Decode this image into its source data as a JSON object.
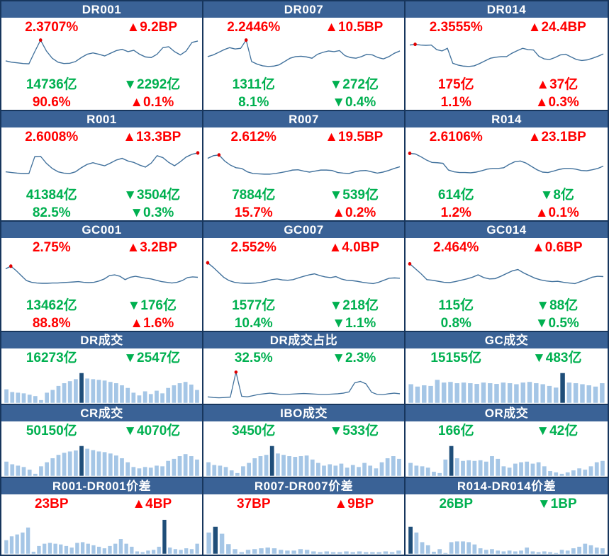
{
  "colors": {
    "red": "#FF0000",
    "green": "#00B050",
    "header_bg": "#3A6296",
    "header_text": "#FFFFFF",
    "border": "#17365D",
    "line": "#41719C",
    "marker": "#E00000",
    "bar_light": "#A5C6E6",
    "bar_dark": "#1F4E79"
  },
  "panels": [
    {
      "title": "DR001",
      "layout": "rate",
      "stats": [
        [
          {
            "text": "2.3707%",
            "color": "red"
          },
          {
            "text": "▲9.2BP",
            "color": "red"
          }
        ],
        [
          {
            "text": "14736亿",
            "color": "green"
          },
          {
            "text": "▼2292亿",
            "color": "green"
          }
        ],
        [
          {
            "text": "90.6%",
            "color": "red"
          },
          {
            "text": "▲0.1%",
            "color": "red"
          }
        ]
      ]
    },
    {
      "title": "DR007",
      "layout": "rate",
      "stats": [
        [
          {
            "text": "2.2446%",
            "color": "red"
          },
          {
            "text": "▲10.5BP",
            "color": "red"
          }
        ],
        [
          {
            "text": "1311亿",
            "color": "green"
          },
          {
            "text": "▼272亿",
            "color": "green"
          }
        ],
        [
          {
            "text": "8.1%",
            "color": "green"
          },
          {
            "text": "▼0.4%",
            "color": "green"
          }
        ]
      ]
    },
    {
      "title": "DR014",
      "layout": "rate",
      "stats": [
        [
          {
            "text": "2.3555%",
            "color": "red"
          },
          {
            "text": "▲24.4BP",
            "color": "red"
          }
        ],
        [
          {
            "text": "175亿",
            "color": "red"
          },
          {
            "text": "▲37亿",
            "color": "red"
          }
        ],
        [
          {
            "text": "1.1%",
            "color": "red"
          },
          {
            "text": "▲0.3%",
            "color": "red"
          }
        ]
      ]
    },
    {
      "title": "R001",
      "layout": "rate",
      "stats": [
        [
          {
            "text": "2.6008%",
            "color": "red"
          },
          {
            "text": "▲13.3BP",
            "color": "red"
          }
        ],
        [
          {
            "text": "41384亿",
            "color": "green"
          },
          {
            "text": "▼3504亿",
            "color": "green"
          }
        ],
        [
          {
            "text": "82.5%",
            "color": "green"
          },
          {
            "text": "▼0.3%",
            "color": "green"
          }
        ]
      ]
    },
    {
      "title": "R007",
      "layout": "rate",
      "stats": [
        [
          {
            "text": "2.612%",
            "color": "red"
          },
          {
            "text": "▲19.5BP",
            "color": "red"
          }
        ],
        [
          {
            "text": "7884亿",
            "color": "green"
          },
          {
            "text": "▼539亿",
            "color": "green"
          }
        ],
        [
          {
            "text": "15.7%",
            "color": "red"
          },
          {
            "text": "▲0.2%",
            "color": "red"
          }
        ]
      ]
    },
    {
      "title": "R014",
      "layout": "rate",
      "stats": [
        [
          {
            "text": "2.6106%",
            "color": "red"
          },
          {
            "text": "▲23.1BP",
            "color": "red"
          }
        ],
        [
          {
            "text": "614亿",
            "color": "green"
          },
          {
            "text": "▼8亿",
            "color": "green"
          }
        ],
        [
          {
            "text": "1.2%",
            "color": "red"
          },
          {
            "text": "▲0.1%",
            "color": "red"
          }
        ]
      ]
    },
    {
      "title": "GC001",
      "layout": "rate",
      "stats": [
        [
          {
            "text": "2.75%",
            "color": "red"
          },
          {
            "text": "▲3.2BP",
            "color": "red"
          }
        ],
        [
          {
            "text": "13462亿",
            "color": "green"
          },
          {
            "text": "▼176亿",
            "color": "green"
          }
        ],
        [
          {
            "text": "88.8%",
            "color": "red"
          },
          {
            "text": "▲1.6%",
            "color": "red"
          }
        ]
      ]
    },
    {
      "title": "GC007",
      "layout": "rate",
      "stats": [
        [
          {
            "text": "2.552%",
            "color": "red"
          },
          {
            "text": "▲4.0BP",
            "color": "red"
          }
        ],
        [
          {
            "text": "1577亿",
            "color": "green"
          },
          {
            "text": "▼218亿",
            "color": "green"
          }
        ],
        [
          {
            "text": "10.4%",
            "color": "green"
          },
          {
            "text": "▼1.1%",
            "color": "green"
          }
        ]
      ]
    },
    {
      "title": "GC014",
      "layout": "rate",
      "stats": [
        [
          {
            "text": "2.464%",
            "color": "red"
          },
          {
            "text": "▲0.6BP",
            "color": "red"
          }
        ],
        [
          {
            "text": "115亿",
            "color": "green"
          },
          {
            "text": "▼88亿",
            "color": "green"
          }
        ],
        [
          {
            "text": "0.8%",
            "color": "green"
          },
          {
            "text": "▼0.5%",
            "color": "green"
          }
        ]
      ]
    },
    {
      "title": "DR成交",
      "layout": "stat",
      "stats": [
        [
          {
            "text": "16273亿",
            "color": "green"
          },
          {
            "text": "▼2547亿",
            "color": "green"
          }
        ]
      ]
    },
    {
      "title": "DR成交占比",
      "layout": "stat",
      "stats": [
        [
          {
            "text": "32.5%",
            "color": "green"
          },
          {
            "text": "▼2.3%",
            "color": "green"
          }
        ]
      ]
    },
    {
      "title": "GC成交",
      "layout": "stat",
      "stats": [
        [
          {
            "text": "15155亿",
            "color": "green"
          },
          {
            "text": "▼483亿",
            "color": "green"
          }
        ]
      ]
    },
    {
      "title": "CR成交",
      "layout": "stat",
      "stats": [
        [
          {
            "text": "50150亿",
            "color": "green"
          },
          {
            "text": "▼4070亿",
            "color": "green"
          }
        ]
      ]
    },
    {
      "title": "IBO成交",
      "layout": "stat",
      "stats": [
        [
          {
            "text": "3450亿",
            "color": "green"
          },
          {
            "text": "▼533亿",
            "color": "green"
          }
        ]
      ]
    },
    {
      "title": "OR成交",
      "layout": "stat",
      "stats": [
        [
          {
            "text": "166亿",
            "color": "green"
          },
          {
            "text": "▼42亿",
            "color": "green"
          }
        ]
      ]
    },
    {
      "title": "R001-DR001价差",
      "layout": "stat",
      "stats": [
        [
          {
            "text": "23BP",
            "color": "red"
          },
          {
            "text": "▲4BP",
            "color": "red"
          }
        ]
      ]
    },
    {
      "title": "R007-DR007价差",
      "layout": "stat",
      "stats": [
        [
          {
            "text": "37BP",
            "color": "red"
          },
          {
            "text": "▲9BP",
            "color": "red"
          }
        ]
      ]
    },
    {
      "title": "R014-DR014价差",
      "layout": "stat",
      "stats": [
        [
          {
            "text": "26BP",
            "color": "green"
          },
          {
            "text": "▼1BP",
            "color": "green"
          }
        ]
      ]
    }
  ],
  "chart_data": [
    {
      "name": "DR001",
      "type": "line",
      "scale": "percent-of-chart-height (axis unlabeled)",
      "values": [
        32,
        28,
        26,
        24,
        23,
        60,
        95,
        62,
        40,
        28,
        24,
        25,
        30,
        42,
        52,
        56,
        52,
        47,
        55,
        63,
        67,
        60,
        64,
        52,
        44,
        42,
        52,
        72,
        75,
        60,
        50,
        62,
        88,
        92
      ],
      "marker_index": 6
    },
    {
      "name": "DR007",
      "type": "line",
      "scale": "percent-of-chart-height (axis unlabeled)",
      "values": [
        45,
        50,
        58,
        66,
        72,
        68,
        70,
        95,
        30,
        22,
        17,
        15,
        16,
        20,
        30,
        40,
        45,
        46,
        44,
        40,
        52,
        58,
        62,
        60,
        63,
        48,
        42,
        40,
        45,
        52,
        50,
        42,
        38,
        45,
        55,
        62
      ],
      "marker_index": 7
    },
    {
      "name": "DR014",
      "type": "line",
      "scale": "percent-of-chart-height (axis unlabeled)",
      "values": [
        80,
        82,
        80,
        79,
        80,
        66,
        62,
        70,
        25,
        19,
        16,
        15,
        17,
        24,
        32,
        40,
        43,
        45,
        45,
        55,
        63,
        70,
        66,
        65,
        46,
        38,
        36,
        42,
        50,
        52,
        44,
        36,
        33,
        35,
        40,
        46,
        53
      ],
      "marker_index": 1
    },
    {
      "name": "R001",
      "type": "line",
      "scale": "percent-of-chart-height (axis unlabeled)",
      "values": [
        30,
        28,
        26,
        25,
        25,
        75,
        76,
        55,
        40,
        30,
        26,
        25,
        30,
        42,
        52,
        57,
        52,
        48,
        56,
        65,
        70,
        62,
        58,
        50,
        44,
        56,
        78,
        72,
        58,
        48,
        60,
        74,
        82,
        86
      ],
      "marker_index": 33
    },
    {
      "name": "R007",
      "type": "line",
      "scale": "percent-of-chart-height (axis unlabeled)",
      "values": [
        70,
        78,
        80,
        62,
        50,
        42,
        40,
        30,
        25,
        24,
        23,
        23,
        25,
        28,
        31,
        35,
        36,
        32,
        29,
        32,
        35,
        35,
        34,
        28,
        26,
        25,
        30,
        33,
        34,
        30,
        26,
        29,
        34,
        40,
        45
      ],
      "marker_index": 2
    },
    {
      "name": "R014",
      "type": "line",
      "scale": "percent-of-chart-height (axis unlabeled)",
      "values": [
        85,
        83,
        75,
        65,
        58,
        57,
        55,
        35,
        30,
        28,
        28,
        27,
        29,
        33,
        38,
        40,
        40,
        42,
        52,
        60,
        62,
        56,
        46,
        36,
        29,
        28,
        32,
        37,
        40,
        40,
        38,
        34,
        33,
        36,
        40,
        47
      ],
      "marker_index": 0
    },
    {
      "name": "GC001",
      "type": "line",
      "scale": "percent-of-chart-height (axis unlabeled)",
      "values": [
        70,
        78,
        65,
        50,
        35,
        30,
        28,
        27,
        27,
        28,
        28,
        29,
        30,
        31,
        32,
        30,
        29,
        30,
        34,
        40,
        50,
        52,
        48,
        38,
        45,
        48,
        45,
        42,
        40,
        36,
        32,
        30,
        28,
        30,
        35,
        44,
        46,
        45
      ],
      "marker_index": 1
    },
    {
      "name": "GC007",
      "type": "line",
      "scale": "percent-of-chart-height (axis unlabeled)",
      "values": [
        88,
        75,
        60,
        45,
        35,
        30,
        28,
        27,
        27,
        28,
        30,
        33,
        38,
        40,
        37,
        36,
        38,
        43,
        48,
        52,
        55,
        50,
        46,
        44,
        47,
        40,
        36,
        35,
        33,
        30,
        28,
        26,
        30,
        36,
        42,
        43,
        42
      ],
      "marker_index": 0
    },
    {
      "name": "GC014",
      "type": "line",
      "scale": "percent-of-chart-height (axis unlabeled)",
      "values": [
        85,
        70,
        55,
        38,
        36,
        33,
        30,
        29,
        32,
        36,
        40,
        45,
        52,
        44,
        40,
        41,
        48,
        56,
        64,
        68,
        58,
        50,
        42,
        37,
        34,
        32,
        33,
        30,
        28,
        26,
        32,
        38,
        45,
        48,
        47
      ],
      "marker_index": 0
    },
    {
      "name": "DR成交",
      "type": "bar",
      "scale": "percent-of-chart-height (axis unlabeled)",
      "values": [
        40,
        32,
        30,
        28,
        24,
        20,
        8,
        30,
        38,
        50,
        58,
        64,
        70,
        88,
        72,
        70,
        68,
        66,
        62,
        58,
        52,
        44,
        30,
        22,
        34,
        26,
        36,
        28,
        44,
        52,
        58,
        62,
        54,
        38
      ],
      "highlight_index": 13
    },
    {
      "name": "DR成交占比",
      "type": "line",
      "scale": "percent-of-chart-height (axis unlabeled)",
      "values": [
        10,
        8,
        7,
        8,
        9,
        90,
        12,
        10,
        14,
        18,
        20,
        22,
        20,
        18,
        18,
        19,
        20,
        21,
        20,
        19,
        18,
        18,
        19,
        20,
        22,
        26,
        55,
        60,
        52,
        25,
        18,
        17,
        20,
        22,
        20
      ],
      "marker_index": 5
    },
    {
      "name": "GC成交",
      "type": "bar",
      "scale": "percent-of-chart-height (axis unlabeled)",
      "values": [
        55,
        48,
        52,
        50,
        68,
        60,
        62,
        58,
        60,
        58,
        56,
        60,
        58,
        56,
        60,
        58,
        55,
        60,
        62,
        58,
        55,
        50,
        45,
        88,
        60,
        58,
        55,
        52,
        48,
        58
      ],
      "highlight_index": 23
    },
    {
      "name": "CR成交",
      "type": "bar",
      "scale": "percent-of-chart-height (axis unlabeled)",
      "values": [
        42,
        34,
        30,
        26,
        18,
        6,
        28,
        40,
        52,
        62,
        68,
        72,
        75,
        88,
        80,
        76,
        72,
        70,
        66,
        60,
        52,
        40,
        26,
        22,
        26,
        24,
        30,
        28,
        44,
        50,
        58,
        64,
        58,
        48
      ],
      "highlight_index": 13
    },
    {
      "name": "IBO成交",
      "type": "bar",
      "scale": "percent-of-chart-height (axis unlabeled)",
      "values": [
        40,
        32,
        30,
        26,
        16,
        8,
        28,
        38,
        52,
        58,
        62,
        88,
        66,
        62,
        58,
        56,
        58,
        60,
        48,
        38,
        30,
        34,
        30,
        36,
        24,
        32,
        26,
        38,
        30,
        22,
        40,
        52,
        58,
        50
      ],
      "highlight_index": 11
    },
    {
      "name": "OR成交",
      "type": "bar",
      "scale": "percent-of-chart-height (axis unlabeled)",
      "values": [
        38,
        30,
        28,
        24,
        12,
        8,
        48,
        88,
        52,
        44,
        46,
        44,
        46,
        42,
        58,
        50,
        28,
        24,
        36,
        40,
        42,
        36,
        40,
        28,
        14,
        10,
        6,
        10,
        16,
        22,
        18,
        28,
        40,
        44
      ],
      "highlight_index": 7
    },
    {
      "name": "R001-DR001价差",
      "type": "bar",
      "scale": "percent-of-chart-height (axis unlabeled)",
      "values": [
        35,
        45,
        50,
        55,
        68,
        5,
        20,
        26,
        28,
        26,
        24,
        20,
        16,
        28,
        30,
        26,
        22,
        18,
        14,
        20,
        26,
        38,
        26,
        18,
        6,
        4,
        8,
        10,
        18,
        88,
        16,
        12,
        10,
        14,
        12,
        26
      ],
      "highlight_index": 29
    },
    {
      "name": "R007-DR007价差",
      "type": "bar",
      "scale": "percent-of-chart-height (axis unlabeled)",
      "values": [
        55,
        70,
        52,
        25,
        12,
        4,
        10,
        12,
        14,
        16,
        14,
        10,
        8,
        8,
        12,
        10,
        6,
        4,
        6,
        4,
        4,
        6,
        4,
        6,
        4,
        4,
        4,
        6,
        4,
        8
      ],
      "highlight_index": 1
    },
    {
      "name": "R014-DR014价差",
      "type": "bar",
      "scale": "percent-of-chart-height (axis unlabeled)",
      "values": [
        70,
        55,
        30,
        22,
        5,
        12,
        2,
        30,
        32,
        32,
        30,
        24,
        14,
        10,
        12,
        8,
        6,
        8,
        6,
        8,
        16,
        6,
        4,
        6,
        4,
        2,
        10,
        8,
        14,
        18,
        26,
        22,
        16,
        14
      ],
      "highlight_index": 0
    }
  ]
}
